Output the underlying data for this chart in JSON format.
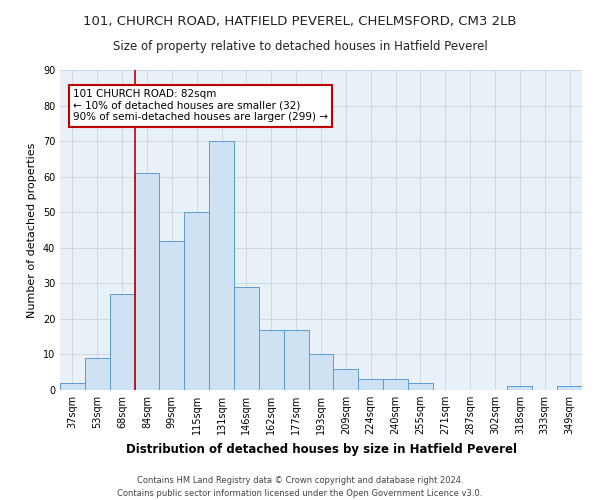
{
  "title": "101, CHURCH ROAD, HATFIELD PEVEREL, CHELMSFORD, CM3 2LB",
  "subtitle": "Size of property relative to detached houses in Hatfield Peverel",
  "xlabel": "Distribution of detached houses by size in Hatfield Peverel",
  "ylabel": "Number of detached properties",
  "categories": [
    "37sqm",
    "53sqm",
    "68sqm",
    "84sqm",
    "99sqm",
    "115sqm",
    "131sqm",
    "146sqm",
    "162sqm",
    "177sqm",
    "193sqm",
    "209sqm",
    "224sqm",
    "240sqm",
    "255sqm",
    "271sqm",
    "287sqm",
    "302sqm",
    "318sqm",
    "333sqm",
    "349sqm"
  ],
  "values": [
    2,
    9,
    27,
    61,
    42,
    50,
    70,
    29,
    17,
    17,
    10,
    6,
    3,
    3,
    2,
    0,
    0,
    0,
    1,
    0,
    1
  ],
  "bar_color": "#cfe2f3",
  "bar_edge_color": "#5b9bd5",
  "vline_color": "#c00000",
  "annotation_text": "101 CHURCH ROAD: 82sqm\n← 10% of detached houses are smaller (32)\n90% of semi-detached houses are larger (299) →",
  "annotation_box_color": "#ffffff",
  "annotation_box_edge": "#c00000",
  "ylim": [
    0,
    75
  ],
  "yticks": [
    0,
    10,
    20,
    30,
    40,
    50,
    60,
    70,
    80,
    90
  ],
  "footer1": "Contains HM Land Registry data © Crown copyright and database right 2024.",
  "footer2": "Contains public sector information licensed under the Open Government Licence v3.0.",
  "bg_color": "#ffffff",
  "axes_bg_color": "#e8f0f8",
  "grid_color": "#c8d4e0",
  "title_fontsize": 9.5,
  "subtitle_fontsize": 8.5,
  "ylabel_fontsize": 8,
  "xlabel_fontsize": 8.5,
  "tick_fontsize": 7,
  "annotation_fontsize": 7.5,
  "footer_fontsize": 6
}
